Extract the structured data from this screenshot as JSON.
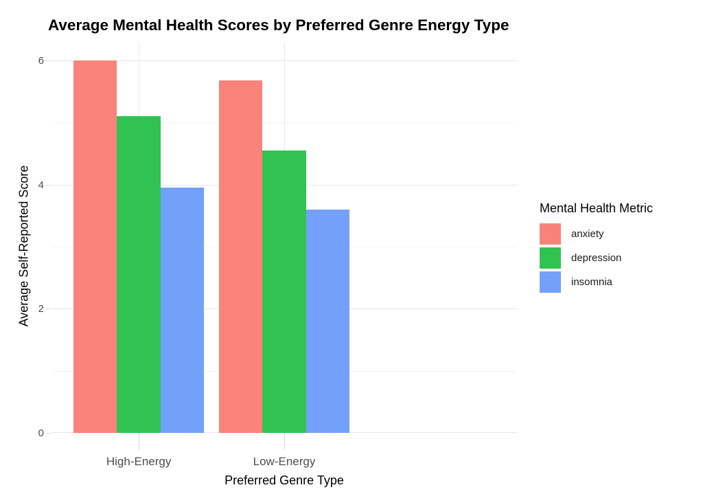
{
  "chart_data": {
    "type": "bar",
    "title": "Average Mental Health Scores by Preferred Genre Energy Type",
    "xlabel": "Preferred Genre Type",
    "ylabel": "Average Self-Reported Score",
    "categories": [
      "High-Energy",
      "Low-Energy"
    ],
    "series": [
      {
        "name": "anxiety",
        "color": "#F9837B",
        "values": [
          6.0,
          5.68
        ]
      },
      {
        "name": "depression",
        "color": "#30C352",
        "values": [
          5.1,
          4.55
        ]
      },
      {
        "name": "insomnia",
        "color": "#73A0F8",
        "values": [
          3.95,
          3.6
        ]
      }
    ],
    "y_major_ticks": [
      0,
      2,
      4,
      6
    ],
    "y_minor_ticks": [
      1,
      3,
      5
    ],
    "ylim": [
      0,
      6.29
    ],
    "grid": true,
    "legend_title": "Mental Health Metric",
    "legend_position": "right"
  },
  "colors": {
    "grid_major": "#E8E8E8",
    "grid_minor": "#F3F3F3",
    "tick_mark": "#D9D9D9",
    "axis_text": "#4D4D4D",
    "title_text": "#000000"
  }
}
